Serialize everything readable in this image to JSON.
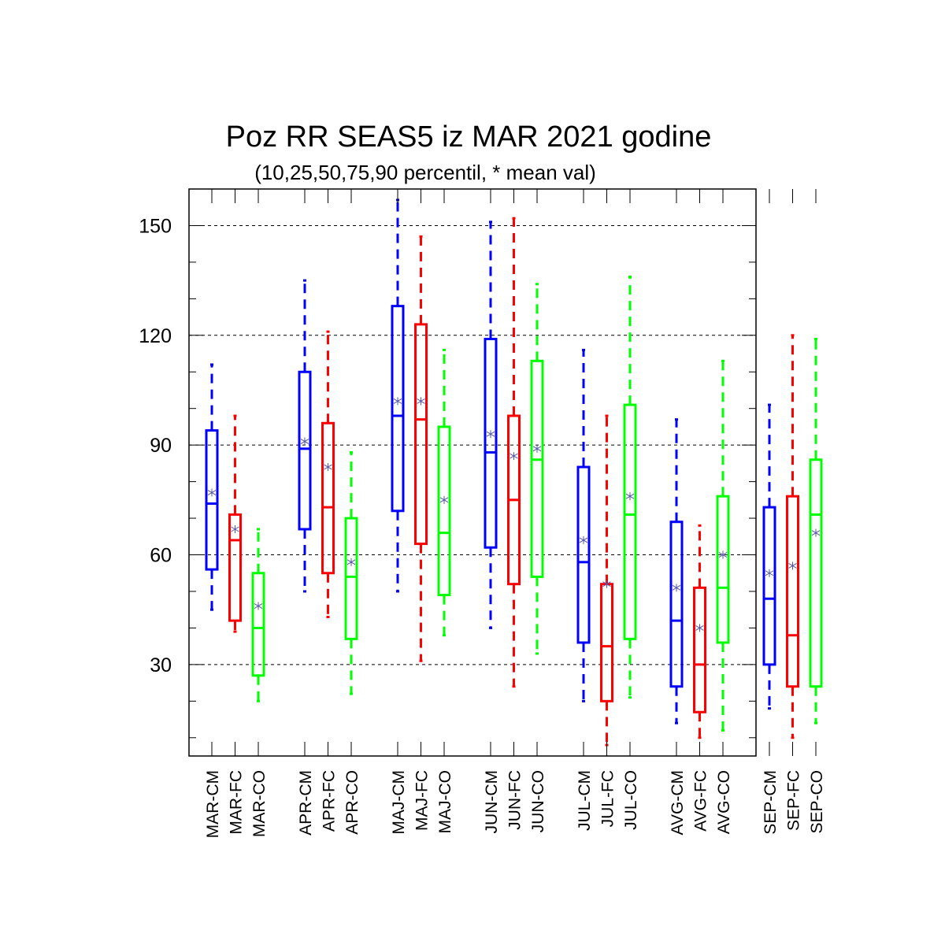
{
  "chart_data": {
    "type": "box",
    "title": "Poz RR SEAS5 iz MAR 2021 godine",
    "subtitle": "(10,25,50,75,90 percentil, * mean val)",
    "ylim": [
      5,
      160
    ],
    "yticks": [
      30,
      60,
      90,
      120,
      150
    ],
    "grid": "horizontal dashed at major ticks",
    "mean_marker": "*",
    "colors": {
      "CM": "#0000ff",
      "FC": "#ff0000",
      "CO": "#00ff00",
      "mean": "#5555aa"
    },
    "boxes": [
      {
        "label": "MAR-CM",
        "group": "CM",
        "p10": 45,
        "p25": 56,
        "p50": 74,
        "p75": 94,
        "p90": 112,
        "mean": 77
      },
      {
        "label": "MAR-FC",
        "group": "FC",
        "p10": 39,
        "p25": 42,
        "p50": 64,
        "p75": 71,
        "p90": 98,
        "mean": 67
      },
      {
        "label": "MAR-CO",
        "group": "CO",
        "p10": 20,
        "p25": 27,
        "p50": 40,
        "p75": 55,
        "p90": 67,
        "mean": 46
      },
      {
        "label": "APR-CM",
        "group": "CM",
        "p10": 50,
        "p25": 67,
        "p50": 89,
        "p75": 110,
        "p90": 135,
        "mean": 91
      },
      {
        "label": "APR-FC",
        "group": "FC",
        "p10": 43,
        "p25": 55,
        "p50": 73,
        "p75": 96,
        "p90": 121,
        "mean": 84
      },
      {
        "label": "APR-CO",
        "group": "CO",
        "p10": 22,
        "p25": 37,
        "p50": 54,
        "p75": 70,
        "p90": 88,
        "mean": 58
      },
      {
        "label": "MAJ-CM",
        "group": "CM",
        "p10": 50,
        "p25": 72,
        "p50": 98,
        "p75": 128,
        "p90": 157,
        "mean": 102
      },
      {
        "label": "MAJ-FC",
        "group": "FC",
        "p10": 31,
        "p25": 63,
        "p50": 97,
        "p75": 123,
        "p90": 147,
        "mean": 102
      },
      {
        "label": "MAJ-CO",
        "group": "CO",
        "p10": 38,
        "p25": 49,
        "p50": 66,
        "p75": 95,
        "p90": 116,
        "mean": 75
      },
      {
        "label": "JUN-CM",
        "group": "CM",
        "p10": 40,
        "p25": 62,
        "p50": 88,
        "p75": 119,
        "p90": 151,
        "mean": 93
      },
      {
        "label": "JUN-FC",
        "group": "FC",
        "p10": 24,
        "p25": 52,
        "p50": 75,
        "p75": 98,
        "p90": 152,
        "mean": 87
      },
      {
        "label": "JUN-CO",
        "group": "CO",
        "p10": 33,
        "p25": 54,
        "p50": 86,
        "p75": 113,
        "p90": 134,
        "mean": 89
      },
      {
        "label": "JUL-CM",
        "group": "CM",
        "p10": 20,
        "p25": 36,
        "p50": 58,
        "p75": 84,
        "p90": 116,
        "mean": 64
      },
      {
        "label": "JUL-FC",
        "group": "FC",
        "p10": 8,
        "p25": 20,
        "p50": 35,
        "p75": 52,
        "p90": 98,
        "mean": 52
      },
      {
        "label": "JUL-CO",
        "group": "CO",
        "p10": 21,
        "p25": 37,
        "p50": 71,
        "p75": 101,
        "p90": 136,
        "mean": 76
      },
      {
        "label": "AVG-CM",
        "group": "CM",
        "p10": 14,
        "p25": 24,
        "p50": 42,
        "p75": 69,
        "p90": 97,
        "mean": 51
      },
      {
        "label": "AVG-FC",
        "group": "FC",
        "p10": 10,
        "p25": 17,
        "p50": 30,
        "p75": 51,
        "p90": 68,
        "mean": 40
      },
      {
        "label": "AVG-CO",
        "group": "CO",
        "p10": 12,
        "p25": 36,
        "p50": 51,
        "p75": 76,
        "p90": 113,
        "mean": 60
      },
      {
        "label": "SEP-CM",
        "group": "CM",
        "p10": 18,
        "p25": 30,
        "p50": 48,
        "p75": 73,
        "p90": 101,
        "mean": 55
      },
      {
        "label": "SEP-FC",
        "group": "FC",
        "p10": 10,
        "p25": 24,
        "p50": 38,
        "p75": 76,
        "p90": 120,
        "mean": 57
      },
      {
        "label": "SEP-CO",
        "group": "CO",
        "p10": 14,
        "p25": 24,
        "p50": 71,
        "p75": 86,
        "p90": 119,
        "mean": 66
      }
    ]
  }
}
